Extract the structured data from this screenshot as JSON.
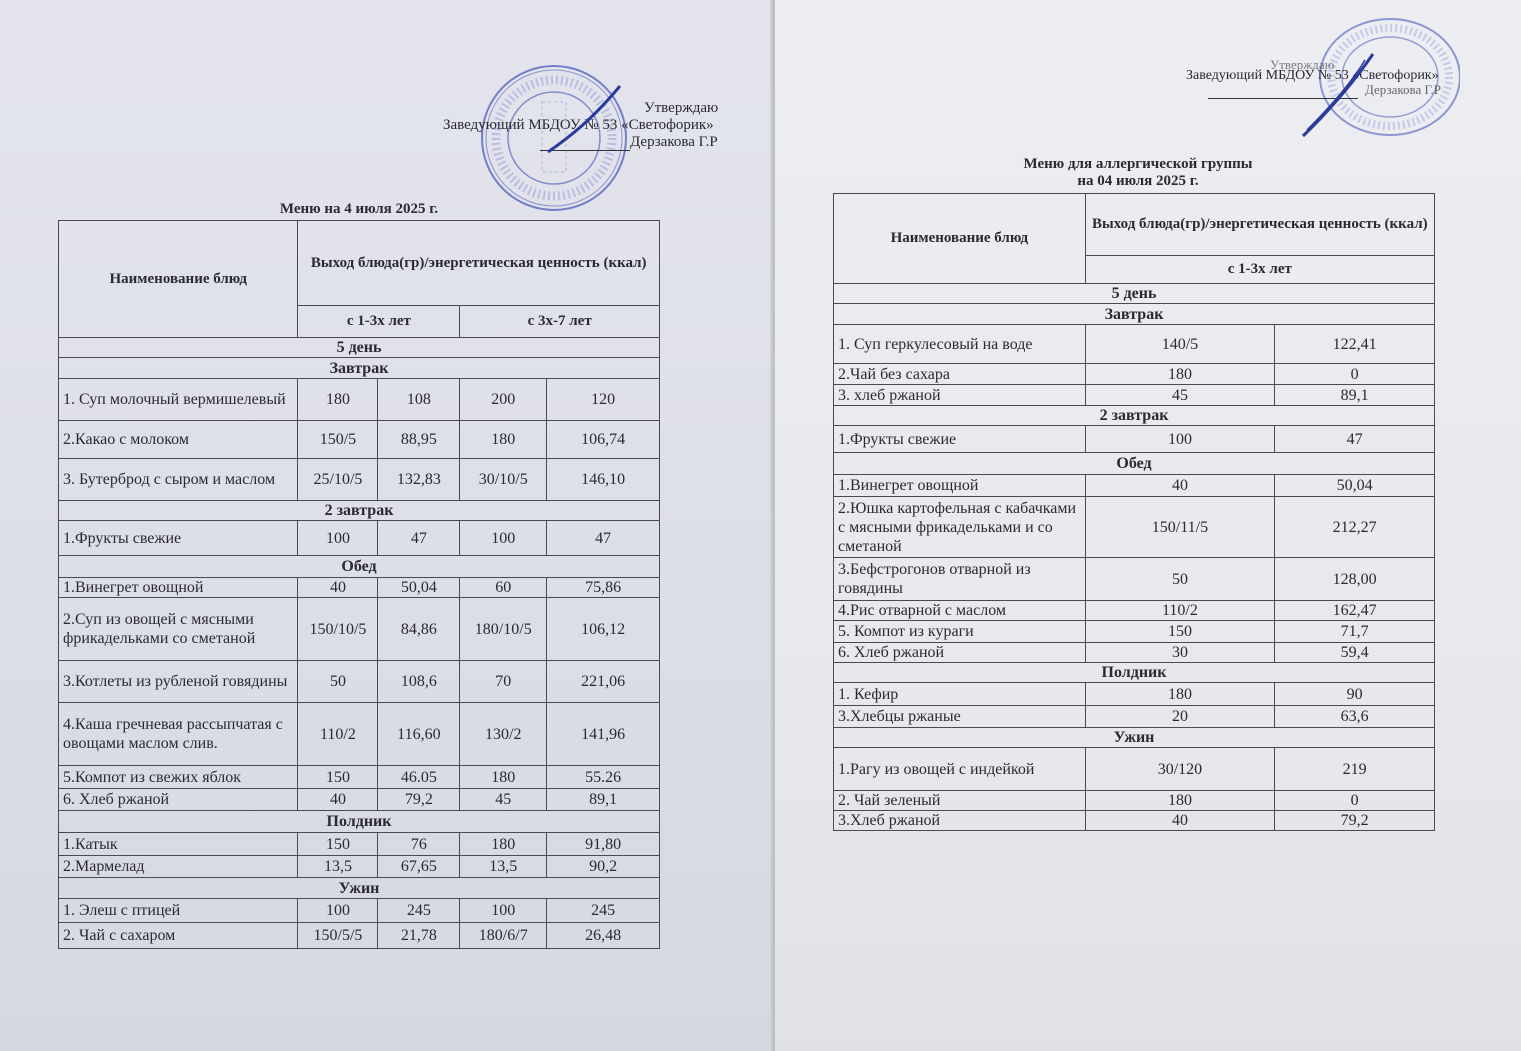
{
  "left": {
    "approval": {
      "approve": "Утверждаю",
      "position": "Заведующий МБДОУ № 53 «Светофорик»",
      "name": "Дерзакова Г.Р"
    },
    "title": "Меню на 4 июля 2025 г.",
    "header": {
      "dish": "Наименование блюд",
      "output": "Выход блюда(гр)/энергетическая ценность (ккал)",
      "age1": "с 1-3х лет",
      "age2": "с 3х-7 лет"
    },
    "rows": [
      {
        "section": "5  день"
      },
      {
        "section": "Завтрак"
      },
      {
        "cells": [
          "1. Суп молочный вермишелевый",
          "180",
          "108",
          "200",
          "120"
        ]
      },
      {
        "cells": [
          "2.Какао с молоком",
          "150/5",
          "88,95",
          "180",
          "106,74"
        ]
      },
      {
        "cells": [
          "3. Бутерброд с сыром и маслом",
          "25/10/5",
          "132,83",
          "30/10/5",
          "146,10"
        ]
      },
      {
        "section": "2  завтрак"
      },
      {
        "cells": [
          "1.Фрукты свежие",
          "100",
          "47",
          "100",
          "47"
        ]
      },
      {
        "section": "Обед"
      },
      {
        "cells": [
          "1.Винегрет овощной",
          "40",
          "50,04",
          "60",
          "75,86"
        ]
      },
      {
        "cells": [
          "2.Суп из овощей с мясными фрикадельками  со сметаной",
          "150/10/5",
          "84,86",
          "180/10/5",
          "106,12"
        ]
      },
      {
        "cells": [
          "3.Котлеты из рубленой говядины",
          "50",
          "108,6",
          "70",
          "221,06"
        ]
      },
      {
        "cells": [
          "4.Каша гречневая рассыпчатая с овощами маслом слив.",
          "110/2",
          "116,60",
          "130/2",
          "141,96"
        ]
      },
      {
        "cells": [
          "5.Компот из свежих яблок",
          "150",
          "46.05",
          "180",
          "55.26"
        ]
      },
      {
        "cells": [
          "6. Хлеб ржаной",
          "40",
          "79,2",
          "45",
          "89,1"
        ]
      },
      {
        "section": "Полдник"
      },
      {
        "cells": [
          "1.Катык",
          "150",
          "76",
          "180",
          "91,80"
        ]
      },
      {
        "cells": [
          "2.Мармелад",
          "13,5",
          "67,65",
          "13,5",
          "90,2"
        ]
      },
      {
        "section": "Ужин"
      },
      {
        "cells": [
          "1. Элеш с птицей",
          "100",
          "245",
          "100",
          "245"
        ]
      },
      {
        "cells": [
          "2. Чай с сахаром",
          "150/5/5",
          "21,78",
          "180/6/7",
          "26,48"
        ]
      }
    ]
  },
  "right": {
    "approval": {
      "approve": "Утверждаю",
      "position": "Заведующий МБДОУ № 53 «Светофорик»",
      "name": "Дерзакова Г.Р"
    },
    "title_line1": "Меню для аллергической группы",
    "title_line2": "на 04 июля 2025 г.",
    "header": {
      "dish": "Наименование блюд",
      "output": "Выход блюда(гр)/энергетическая ценность (ккал)",
      "age1": "с 1-3х лет"
    },
    "rows": [
      {
        "section": "5 день"
      },
      {
        "section": "Завтрак"
      },
      {
        "cells": [
          "1. Суп геркулесовый на воде",
          "140/5",
          "122,41"
        ]
      },
      {
        "cells": [
          "2.Чай без сахара",
          "180",
          "0"
        ]
      },
      {
        "cells": [
          "3. хлеб ржаной",
          "45",
          "89,1"
        ]
      },
      {
        "section": "2 завтрак"
      },
      {
        "cells": [
          "1.Фрукты свежие",
          "100",
          "47"
        ]
      },
      {
        "section": "Обед"
      },
      {
        "cells": [
          "1.Винегрет овощной",
          "40",
          "50,04"
        ]
      },
      {
        "cells": [
          "2.Юшка картофельная с кабачками с мясными фрикадельками и со сметаной",
          "150/11/5",
          "212,27"
        ]
      },
      {
        "cells": [
          "3.Бефстрогонов  отварной из говядины",
          "50",
          "128,00"
        ]
      },
      {
        "cells": [
          "4.Рис отварной с маслом",
          "110/2",
          "162,47"
        ]
      },
      {
        "cells": [
          "5. Компот из кураги",
          "150",
          "71,7"
        ]
      },
      {
        "cells": [
          "6. Хлеб ржаной",
          "30",
          "59,4"
        ]
      },
      {
        "section": "Полдник"
      },
      {
        "cells": [
          "1. Кефир",
          "180",
          "90"
        ]
      },
      {
        "cells": [
          "3.Хлебцы ржаные",
          "20",
          "63,6"
        ]
      },
      {
        "section": "Ужин"
      },
      {
        "cells": [
          "1.Рагу из овощей с индейкой",
          "30/120",
          "219"
        ]
      },
      {
        "cells": [
          "2. Чай зеленый",
          "180",
          "0"
        ]
      },
      {
        "cells": [
          "3.Хлеб ржаной",
          "40",
          "79,2"
        ]
      }
    ]
  },
  "colors": {
    "stamp": "#3c4fb0",
    "ink": "#2a2a30"
  }
}
